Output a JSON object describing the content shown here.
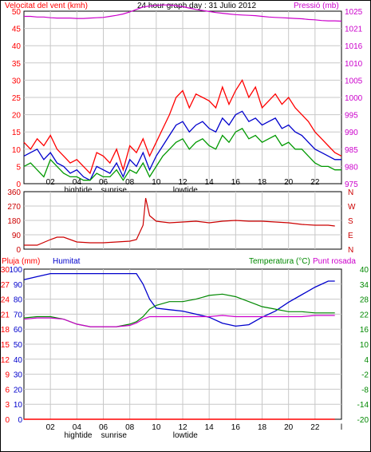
{
  "colors": {
    "wind": "#ff0000",
    "gust": "#009900",
    "wind_avg": "#0000cc",
    "pressure": "#cc00cc",
    "direction": "#cc0000",
    "rain": "#ff0000",
    "humidity": "#0000cc",
    "temperature": "#008800",
    "dewpoint": "#cc00cc",
    "grid": "#c8c8c8",
    "frame": "#000000"
  },
  "header": {
    "left_title": "Velocitat del vent (kmh)",
    "center_title": "24 hour graph day : 31 Julio 2012",
    "right_title": "Pressió (mb)"
  },
  "bottom_header": {
    "left_title": "Pluja (mm)",
    "humidity_title": "Humitat",
    "temp_title": "Temperatura (°C)",
    "dew_title": "Punt rosada"
  },
  "x_ticks": [
    "02",
    "04",
    "06",
    "08",
    "10",
    "12",
    "14",
    "16",
    "18",
    "20",
    "22"
  ],
  "x_end_tick": "l",
  "x_events": [
    "hightide",
    "sunrise",
    "lowtide"
  ],
  "chart_data": [
    {
      "type": "line",
      "title": "24 hour graph day : 31 Julio 2012",
      "ylabel": "Velocitat del vent (kmh)",
      "y2label": "Pressió (mb)",
      "x_hours": [
        0,
        0.5,
        1,
        1.5,
        2,
        2.5,
        3,
        3.5,
        4,
        4.5,
        5,
        5.5,
        6,
        6.5,
        7,
        7.5,
        8,
        8.5,
        9,
        9.5,
        10,
        10.5,
        11,
        11.5,
        12,
        12.5,
        13,
        13.5,
        14,
        14.5,
        15,
        15.5,
        16,
        16.5,
        17,
        17.5,
        18,
        18.5,
        19,
        19.5,
        20,
        20.5,
        21,
        21.5,
        22,
        22.5,
        23,
        23.5,
        24
      ],
      "ylim": [
        0,
        50
      ],
      "y_ticks": [
        "0",
        "5",
        "10",
        "15",
        "20",
        "25",
        "30",
        "35",
        "40",
        "45",
        "50"
      ],
      "y2lim": [
        975,
        1025
      ],
      "y2_ticks": [
        "975",
        "980",
        "985",
        "990",
        "995",
        "1000",
        "1005",
        "1010",
        "1016",
        "1021",
        "1025"
      ],
      "series": [
        {
          "values": [
            12,
            10,
            13,
            11,
            14,
            10,
            8,
            6,
            7,
            5,
            3,
            9,
            8,
            6,
            10,
            4,
            11,
            9,
            13,
            8,
            12,
            16,
            20,
            25,
            27,
            22,
            26,
            25,
            24,
            22,
            28,
            23,
            27,
            30,
            25,
            28,
            22,
            24,
            26,
            23,
            25,
            22,
            20,
            18,
            15,
            13,
            11,
            9,
            8
          ]
        },
        {
          "values": [
            8,
            9,
            10,
            7,
            9,
            6,
            5,
            3,
            4,
            2,
            1,
            5,
            4,
            3,
            6,
            2,
            7,
            5,
            9,
            4,
            8,
            11,
            14,
            17,
            18,
            15,
            17,
            18,
            16,
            15,
            19,
            17,
            20,
            21,
            18,
            19,
            17,
            18,
            19,
            16,
            17,
            15,
            14,
            12,
            10,
            9,
            8,
            7,
            7
          ]
        },
        {
          "values": [
            5,
            6,
            4,
            2,
            7,
            5,
            3,
            2,
            2,
            1,
            1,
            3,
            2,
            2,
            4,
            1,
            4,
            3,
            6,
            2,
            5,
            8,
            10,
            12,
            13,
            10,
            12,
            13,
            11,
            10,
            14,
            12,
            15,
            16,
            13,
            14,
            12,
            13,
            14,
            11,
            12,
            10,
            10,
            8,
            6,
            5,
            5,
            4,
            4
          ]
        },
        {
          "values": [
            1023.5,
            1023.5,
            1023.3,
            1023.3,
            1023.1,
            1023,
            1023,
            1023,
            1022.9,
            1022.9,
            1023,
            1023.1,
            1023.2,
            1023.5,
            1023.8,
            1024.2,
            1024.8,
            1025.5,
            1026.2,
            1026.5,
            1026.7,
            1026.8,
            1026.8,
            1026.6,
            1026.3,
            1025.9,
            1025.5,
            1025.2,
            1024.9,
            1024.6,
            1024.4,
            1024.2,
            1024,
            1023.9,
            1023.8,
            1023.7,
            1023.5,
            1023.3,
            1023.2,
            1023.1,
            1023,
            1022.9,
            1022.8,
            1022.6,
            1022.5,
            1022.3,
            1022.2,
            1022.2,
            1022.1
          ]
        }
      ]
    },
    {
      "type": "line",
      "ylim": [
        0,
        360
      ],
      "y_ticks": [
        "0",
        "90",
        "180",
        "270",
        "360"
      ],
      "y2_ticks": [
        "N",
        "E",
        "S",
        "W",
        "N"
      ],
      "x_hours": [
        0,
        1,
        2,
        2.5,
        3,
        4,
        5,
        6,
        7,
        8,
        8.5,
        9,
        9.2,
        9.5,
        10,
        11,
        12,
        13,
        14,
        15,
        16,
        17,
        18,
        19,
        20,
        21,
        22,
        23,
        23.5
      ],
      "series": [
        {
          "values": [
            25,
            25,
            60,
            75,
            75,
            45,
            40,
            40,
            45,
            50,
            60,
            150,
            320,
            210,
            175,
            165,
            170,
            175,
            165,
            175,
            180,
            175,
            175,
            170,
            165,
            155,
            150,
            150,
            145
          ]
        }
      ]
    },
    {
      "type": "line",
      "ylabel": "Pluja (mm)",
      "ylim": [
        0,
        30
      ],
      "y_ticks": [
        "0",
        "3",
        "6",
        "9",
        "12",
        "15",
        "18",
        "21",
        "24",
        "27",
        "30"
      ],
      "humidity_ticks": [
        "0",
        "10",
        "20",
        "30",
        "40",
        "50",
        "60",
        "70",
        "80",
        "90",
        "100"
      ],
      "y2lim": [
        -20,
        40
      ],
      "y2_ticks": [
        "-20",
        "-14",
        "-8",
        "-2",
        "4",
        "10",
        "16",
        "22",
        "28",
        "34",
        "40"
      ],
      "x_hours": [
        0,
        1,
        2,
        3,
        4,
        5,
        6,
        7,
        8,
        8.5,
        9,
        9.5,
        10,
        11,
        12,
        13,
        14,
        15,
        16,
        17,
        18,
        19,
        20,
        21,
        22,
        23,
        23.5
      ],
      "series": [
        {
          "values": [
            0,
            0,
            0,
            0,
            0,
            0,
            0,
            0,
            0,
            0,
            0,
            0,
            0,
            0,
            0,
            0,
            0,
            0,
            0,
            0,
            0,
            0,
            0,
            0,
            0,
            0,
            0
          ]
        },
        {
          "values": [
            93,
            95,
            97,
            97,
            97,
            97,
            97,
            97,
            97,
            97,
            90,
            80,
            74,
            73,
            72,
            70,
            68,
            64,
            62,
            63,
            68,
            72,
            78,
            83,
            88,
            92,
            92
          ]
        },
        {
          "values": [
            20.5,
            21,
            21,
            20,
            18,
            17,
            17,
            17,
            18,
            19,
            21,
            24,
            25.5,
            27,
            27,
            28,
            29.5,
            30,
            29,
            27,
            25,
            24,
            23,
            23,
            22.5,
            22.5,
            22.5
          ]
        },
        {
          "values": [
            20,
            20.5,
            20.5,
            20,
            18,
            17,
            17,
            17,
            17.5,
            18.5,
            20,
            21,
            21,
            21,
            21,
            21,
            21,
            21.5,
            21,
            21,
            21,
            21,
            21,
            21,
            21.5,
            21.5,
            21.5
          ]
        }
      ]
    }
  ]
}
